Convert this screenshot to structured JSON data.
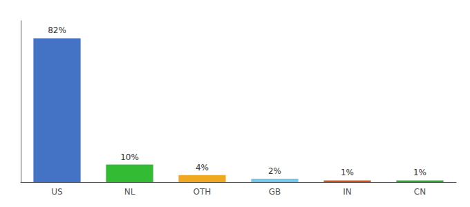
{
  "chart_data": {
    "type": "bar",
    "categories": [
      "US",
      "NL",
      "OTH",
      "GB",
      "IN",
      "CN"
    ],
    "values": [
      82,
      10,
      4,
      2,
      1,
      1
    ],
    "value_labels": [
      "82%",
      "10%",
      "4%",
      "2%",
      "1%",
      "1%"
    ],
    "colors": [
      "#4472c4",
      "#33bb33",
      "#f0a820",
      "#72c8e8",
      "#c85820",
      "#33aa33"
    ],
    "ylim": [
      0,
      92
    ],
    "data_labels": true,
    "tick_labels": "x",
    "grid": false
  }
}
